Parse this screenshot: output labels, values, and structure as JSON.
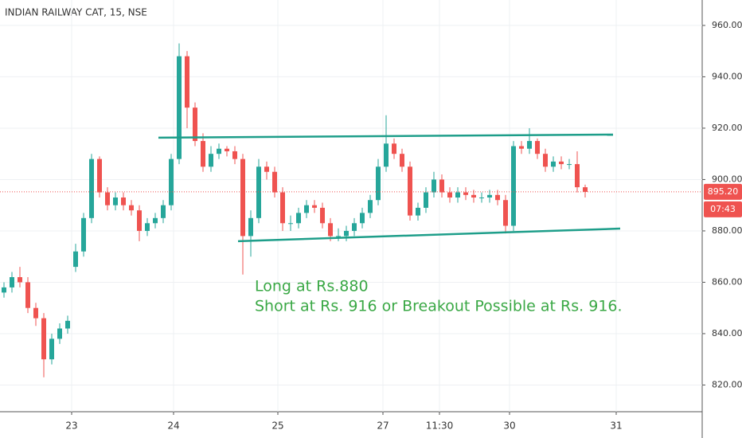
{
  "chart_data": {
    "type": "candlestick",
    "title": "INDIAN RAILWAY CAT, 15, NSE",
    "up_color": "#26a69a",
    "down_color": "#ef5350",
    "x": [
      0,
      1,
      2,
      3,
      4,
      5,
      6,
      7,
      8,
      9,
      10,
      11,
      12,
      13,
      14,
      15,
      16,
      17,
      18,
      19,
      20,
      21,
      22,
      23,
      24,
      25,
      26,
      27,
      28,
      29,
      30,
      31,
      32,
      33,
      34,
      35,
      36,
      37,
      38,
      39,
      40,
      41,
      42,
      43,
      44,
      45,
      46,
      47,
      48,
      49,
      50,
      51,
      52,
      53,
      54,
      55,
      56,
      57,
      58,
      59,
      60,
      61,
      62,
      63,
      64,
      65,
      66,
      67,
      68,
      69,
      70,
      71,
      72,
      73
    ],
    "open": [
      856,
      858,
      862,
      860,
      850,
      846,
      830,
      838,
      842,
      866,
      872,
      885,
      908,
      895,
      890,
      893,
      890,
      888,
      880,
      883,
      885,
      890,
      908,
      948,
      928,
      915,
      905,
      910,
      912,
      911,
      908,
      878,
      885,
      905,
      903,
      895,
      883,
      883,
      887,
      890,
      889,
      883,
      878,
      878,
      880,
      883,
      887,
      892,
      905,
      914,
      910,
      905,
      886,
      889,
      895,
      900,
      895,
      893,
      895,
      894,
      893,
      893,
      894,
      892,
      882,
      913,
      912,
      915,
      910,
      905,
      907,
      906,
      906,
      897
    ],
    "high": [
      860,
      864,
      866,
      862,
      852,
      848,
      840,
      844,
      847,
      875,
      887,
      910,
      909,
      897,
      895,
      895,
      892,
      890,
      885,
      887,
      892,
      910,
      953,
      950,
      930,
      918,
      913,
      914,
      913,
      913,
      910,
      888,
      908,
      907,
      905,
      897,
      886,
      889,
      892,
      892,
      891,
      885,
      881,
      882,
      885,
      889,
      894,
      908,
      925,
      916,
      912,
      907,
      891,
      897,
      903,
      902,
      897,
      897,
      897,
      896,
      895,
      896,
      896,
      894,
      915,
      915,
      920,
      916,
      912,
      909,
      909,
      908,
      911,
      898
    ],
    "low": [
      854,
      856,
      858,
      848,
      843,
      823,
      828,
      836,
      840,
      864,
      870,
      883,
      893,
      888,
      888,
      888,
      886,
      876,
      878,
      881,
      883,
      888,
      906,
      920,
      913,
      903,
      903,
      908,
      909,
      906,
      863,
      870,
      883,
      900,
      893,
      880,
      880,
      881,
      885,
      887,
      881,
      876,
      876,
      876,
      878,
      881,
      885,
      890,
      903,
      908,
      903,
      884,
      884,
      887,
      893,
      893,
      891,
      891,
      892,
      891,
      891,
      891,
      890,
      879,
      880,
      910,
      910,
      908,
      903,
      903,
      904,
      904,
      895,
      893
    ],
    "close": [
      858,
      862,
      860,
      850,
      846,
      830,
      838,
      842,
      845,
      872,
      885,
      908,
      895,
      890,
      893,
      890,
      888,
      880,
      883,
      885,
      890,
      908,
      948,
      928,
      915,
      905,
      910,
      912,
      911,
      908,
      878,
      885,
      905,
      903,
      895,
      883,
      883,
      887,
      890,
      889,
      883,
      878,
      878,
      880,
      883,
      887,
      892,
      905,
      914,
      910,
      905,
      886,
      889,
      895,
      900,
      895,
      893,
      895,
      894,
      893,
      893,
      894,
      892,
      882,
      913,
      912,
      915,
      910,
      905,
      907,
      906,
      906,
      897,
      895.2
    ],
    "xlim": [
      -0.5,
      87.7
    ],
    "xticks": [
      {
        "value": 8.5,
        "label": "23"
      },
      {
        "value": 21.3,
        "label": "24"
      },
      {
        "value": 34.4,
        "label": "25"
      },
      {
        "value": 47.6,
        "label": "27"
      },
      {
        "value": 54.7,
        "label": "11:30"
      },
      {
        "value": 63.5,
        "label": "30"
      },
      {
        "value": 76.9,
        "label": "31"
      }
    ],
    "ylim": [
      809.6,
      969.9
    ],
    "yticks": [
      {
        "value": 820,
        "label": "820.00"
      },
      {
        "value": 840,
        "label": "840.00"
      },
      {
        "value": 860,
        "label": "860.00"
      },
      {
        "value": 880,
        "label": "880.00"
      },
      {
        "value": 900,
        "label": "900.00"
      },
      {
        "value": 920,
        "label": "920.00"
      },
      {
        "value": 940,
        "label": "940.00"
      },
      {
        "value": 960,
        "label": "960.00"
      }
    ],
    "grid": true,
    "last_price": {
      "value": 895.2,
      "label": "895.20"
    },
    "countdown": "07:43",
    "trendlines": [
      {
        "color": "#1e9e8a",
        "x": [
          19.4,
          76.5
        ],
        "y": [
          916.3,
          917.5
        ]
      },
      {
        "color": "#1e9e8a",
        "x": [
          29.4,
          77.4
        ],
        "y": [
          876.0,
          880.9
        ]
      }
    ],
    "annotations": [
      "Long at Rs.880",
      "Short at Rs. 916 or Breakout Possible at Rs. 916."
    ],
    "annotation_color": "#3aa845"
  }
}
